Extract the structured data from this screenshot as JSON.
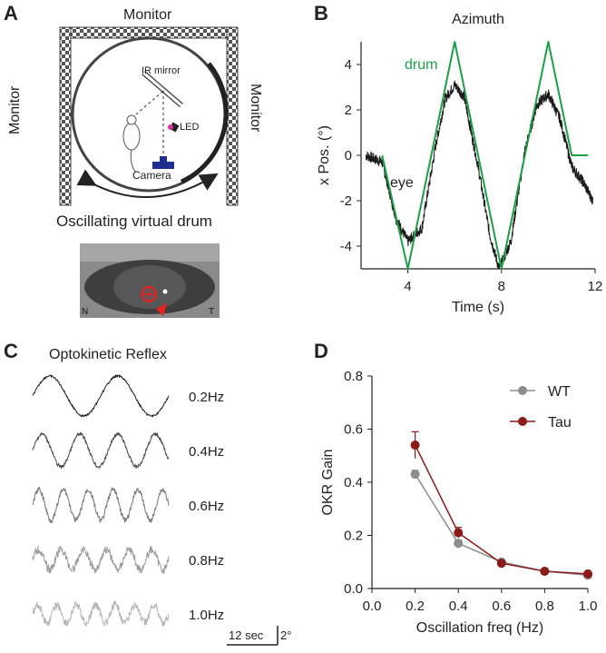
{
  "panels": {
    "a": {
      "letter": "A",
      "monitor_top": "Monitor",
      "monitor_left": "Monitor",
      "monitor_right": "Monitor",
      "ir_mirror": "IR mirror",
      "led": "LED",
      "camera": "Camera",
      "caption": "Oscillating virtual drum",
      "eye_nasal": "N",
      "eye_temporal": "T"
    },
    "b": {
      "letter": "B"
    },
    "c": {
      "letter": "C",
      "title": "Optokinetic Reflex",
      "traces": [
        {
          "label": "0.2Hz",
          "freq": 0.2,
          "color": "#1e1e1e"
        },
        {
          "label": "0.4Hz",
          "freq": 0.4,
          "color": "#4a4a4a"
        },
        {
          "label": "0.6Hz",
          "freq": 0.6,
          "color": "#777777"
        },
        {
          "label": "0.8Hz",
          "freq": 0.8,
          "color": "#9c9c9c"
        },
        {
          "label": "1.0Hz",
          "freq": 1.0,
          "color": "#b6b6b6"
        }
      ],
      "scale_time": "12 sec",
      "scale_amp": "2°"
    },
    "d": {
      "letter": "D"
    }
  },
  "chart_data": [
    {
      "type": "line",
      "title": "Azimuth",
      "xlabel": "Time (s)",
      "ylabel": "x Pos. (°)",
      "xlim": [
        2,
        12
      ],
      "ylim": [
        -5,
        5
      ],
      "xticks": [
        4,
        8,
        12
      ],
      "yticks": [
        -4,
        -2,
        0,
        2,
        4
      ],
      "series": [
        {
          "name": "drum",
          "color": "#1f9e4a",
          "x": [
            2.9,
            4.0,
            6.0,
            8.0,
            10.0,
            11.0,
            11.7
          ],
          "y": [
            0,
            -5,
            5,
            -5,
            5,
            0,
            0
          ]
        },
        {
          "name": "eye",
          "color": "#1a1a1a",
          "x": [
            2.2,
            2.9,
            3.5,
            4.0,
            4.6,
            5.2,
            5.6,
            6.0,
            6.4,
            7.0,
            7.5,
            7.9,
            8.4,
            9.0,
            9.5,
            10.0,
            10.5,
            11.0,
            11.5,
            11.9
          ],
          "y": [
            0,
            -0.3,
            -2.8,
            -3.8,
            -3.2,
            0.5,
            2.5,
            3.1,
            2.6,
            -0.5,
            -3.5,
            -5.0,
            -3.8,
            0.2,
            2.2,
            2.7,
            1.6,
            -0.5,
            -1.2,
            -2.0
          ]
        }
      ]
    },
    {
      "type": "line",
      "xlabel": "Oscillation freq (Hz)",
      "ylabel": "OKR Gain",
      "xlim": [
        0,
        1.0
      ],
      "ylim": [
        0,
        0.8
      ],
      "xticks": [
        0.0,
        0.2,
        0.4,
        0.6,
        0.8,
        1.0
      ],
      "yticks": [
        0.0,
        0.2,
        0.4,
        0.6,
        0.8
      ],
      "legend": "top-right",
      "series": [
        {
          "name": "WT",
          "color": "#8c8c8c",
          "x": [
            0.2,
            0.4,
            0.6,
            0.8,
            1.0
          ],
          "y": [
            0.43,
            0.17,
            0.1,
            0.065,
            0.05
          ],
          "err": [
            0.015,
            0.012,
            0.008,
            0.005,
            0.005
          ]
        },
        {
          "name": "Tau",
          "color": "#8b1a1a",
          "x": [
            0.2,
            0.4,
            0.6,
            0.8,
            1.0
          ],
          "y": [
            0.54,
            0.21,
            0.095,
            0.065,
            0.055
          ],
          "err": [
            0.05,
            0.02,
            0.008,
            0.006,
            0.006
          ]
        }
      ]
    }
  ]
}
